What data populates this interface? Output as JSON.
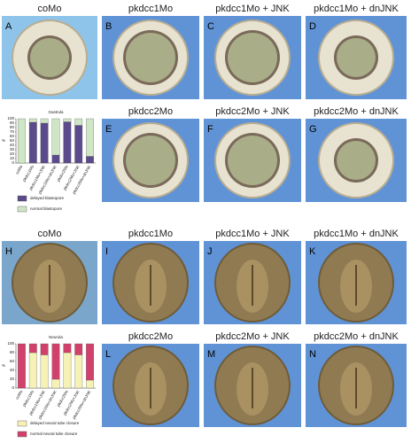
{
  "panels": [
    {
      "label": "A",
      "title": "coMo"
    },
    {
      "label": "B",
      "title": "pkdcc1Mo"
    },
    {
      "label": "C",
      "title": "pkdcc1Mo + JNK"
    },
    {
      "label": "D",
      "title": "pkdcc1Mo + dnJNK"
    },
    {
      "label": "E",
      "title": "pkdcc2Mo"
    },
    {
      "label": "F",
      "title": "pkdcc2Mo + JNK"
    },
    {
      "label": "G",
      "title": "pkdcc2Mo + dnJNK"
    },
    {
      "label": "H",
      "title": "coMo"
    },
    {
      "label": "I",
      "title": "pkdcc1Mo"
    },
    {
      "label": "J",
      "title": "pkdcc1Mo + JNK"
    },
    {
      "label": "K",
      "title": "pkdcc1Mo + dnJNK"
    },
    {
      "label": "L",
      "title": "pkdcc2Mo"
    },
    {
      "label": "M",
      "title": "pkdcc2Mo + JNK"
    },
    {
      "label": "N",
      "title": "pkdcc2Mo + dnJNK"
    }
  ],
  "chart_data": [
    {
      "type": "stacked_bar",
      "title": "Gastrula",
      "y_label": "%",
      "categories": [
        "coMo",
        "pkdcc1Mo",
        "pkdcc1Mo+JNK",
        "pkdcc1Mo+dnJNK",
        "pkdcc2Mo",
        "pkdcc2Mo+JNK",
        "pkdcc2Mo+dnJNK"
      ],
      "series": [
        {
          "name": "delayed blastopore",
          "color": "#5b4a8c",
          "values": [
            0,
            92,
            90,
            18,
            93,
            85,
            15
          ]
        },
        {
          "name": "normal blastopore",
          "color": "#cfe6c6",
          "values": [
            100,
            8,
            10,
            82,
            7,
            15,
            85
          ]
        }
      ],
      "ylim": [
        0,
        100
      ],
      "yticks": [
        0,
        10,
        20,
        30,
        40,
        50,
        60,
        70,
        80,
        90,
        100
      ]
    },
    {
      "type": "stacked_bar",
      "title": "Neurula",
      "y_label": "%",
      "categories": [
        "coMo",
        "pkdcc1Mo",
        "pkdcc1Mo+JNK",
        "pkdcc1Mo+dnJNK",
        "pkdcc2Mo",
        "pkdcc2Mo+JNK",
        "pkdcc2Mo+dnJNK"
      ],
      "series": [
        {
          "name": "delayed neural tube closure",
          "color": "#f6f1b4",
          "values": [
            0,
            80,
            75,
            20,
            80,
            75,
            18
          ]
        },
        {
          "name": "normal neural tube closure",
          "color": "#d2406c",
          "values": [
            100,
            20,
            25,
            80,
            20,
            25,
            82
          ]
        }
      ],
      "ylim": [
        0,
        100
      ],
      "yticks": [
        0,
        20,
        40,
        60,
        80,
        100
      ]
    }
  ]
}
